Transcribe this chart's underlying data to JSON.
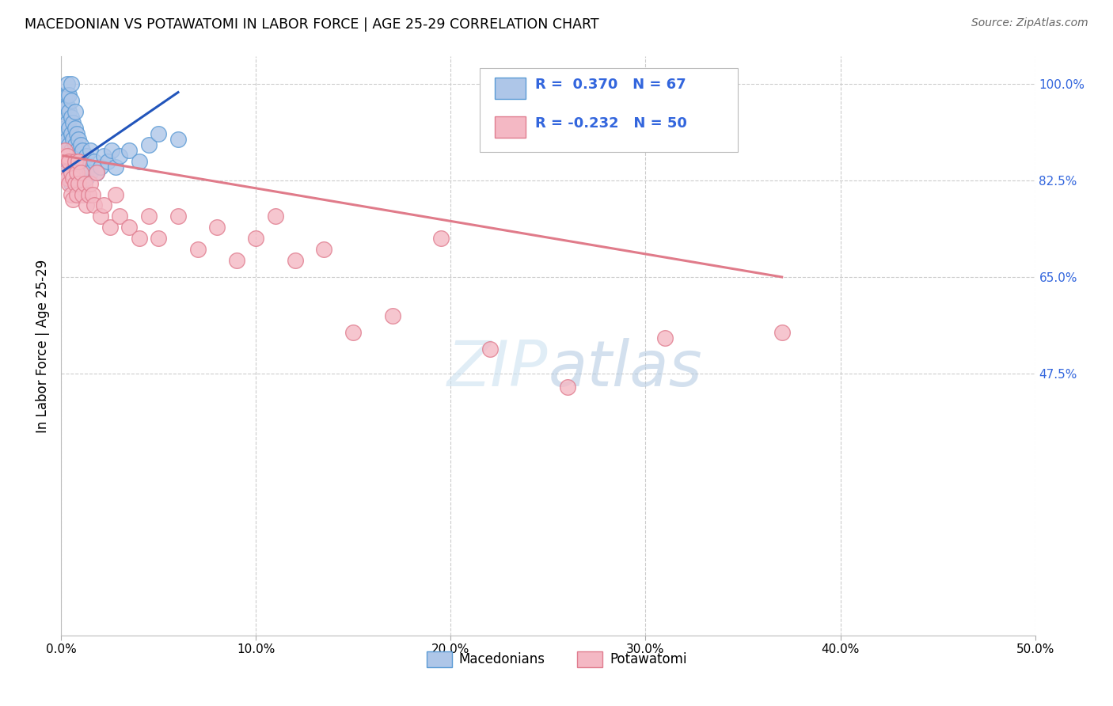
{
  "title": "MACEDONIAN VS POTAWATOMI IN LABOR FORCE | AGE 25-29 CORRELATION CHART",
  "source": "Source: ZipAtlas.com",
  "ylabel": "In Labor Force | Age 25-29",
  "watermark_zip": "ZIP",
  "watermark_atlas": "atlas",
  "xlim": [
    0.0,
    0.5
  ],
  "ylim": [
    0.0,
    1.05
  ],
  "xticks": [
    0.0,
    0.1,
    0.2,
    0.3,
    0.4,
    0.5
  ],
  "xtick_labels": [
    "0.0%",
    "10.0%",
    "20.0%",
    "30.0%",
    "40.0%",
    "50.0%"
  ],
  "ytick_labels_right": [
    "100.0%",
    "82.5%",
    "65.0%",
    "47.5%"
  ],
  "ytick_vals_right": [
    1.0,
    0.825,
    0.65,
    0.475
  ],
  "mac_R": 0.37,
  "mac_N": 67,
  "pot_R": -0.232,
  "pot_N": 50,
  "mac_color": "#aec6e8",
  "mac_edge_color": "#5b9bd5",
  "pot_color": "#f4b8c4",
  "pot_edge_color": "#e07d8f",
  "mac_line_color": "#2255bb",
  "pot_line_color": "#e07b8a",
  "right_axis_color": "#3366dd",
  "grid_color": "#cccccc",
  "background_color": "#ffffff",
  "mac_x": [
    0.001,
    0.001,
    0.001,
    0.002,
    0.002,
    0.002,
    0.002,
    0.002,
    0.003,
    0.003,
    0.003,
    0.003,
    0.003,
    0.003,
    0.003,
    0.004,
    0.004,
    0.004,
    0.004,
    0.004,
    0.004,
    0.005,
    0.005,
    0.005,
    0.005,
    0.005,
    0.005,
    0.005,
    0.006,
    0.006,
    0.006,
    0.006,
    0.007,
    0.007,
    0.007,
    0.007,
    0.007,
    0.008,
    0.008,
    0.008,
    0.009,
    0.009,
    0.009,
    0.01,
    0.01,
    0.01,
    0.011,
    0.011,
    0.012,
    0.013,
    0.013,
    0.014,
    0.015,
    0.015,
    0.017,
    0.018,
    0.02,
    0.022,
    0.024,
    0.026,
    0.028,
    0.03,
    0.035,
    0.04,
    0.045,
    0.05,
    0.06
  ],
  "mac_y": [
    0.87,
    0.9,
    0.95,
    0.86,
    0.89,
    0.92,
    0.96,
    0.98,
    0.84,
    0.87,
    0.9,
    0.93,
    0.96,
    0.98,
    1.0,
    0.83,
    0.86,
    0.89,
    0.92,
    0.95,
    0.98,
    0.82,
    0.85,
    0.88,
    0.91,
    0.94,
    0.97,
    1.0,
    0.84,
    0.87,
    0.9,
    0.93,
    0.83,
    0.86,
    0.89,
    0.92,
    0.95,
    0.85,
    0.88,
    0.91,
    0.84,
    0.87,
    0.9,
    0.83,
    0.86,
    0.89,
    0.85,
    0.88,
    0.84,
    0.83,
    0.87,
    0.85,
    0.84,
    0.88,
    0.86,
    0.84,
    0.85,
    0.87,
    0.86,
    0.88,
    0.85,
    0.87,
    0.88,
    0.86,
    0.89,
    0.91,
    0.9
  ],
  "pot_x": [
    0.001,
    0.002,
    0.002,
    0.003,
    0.003,
    0.004,
    0.004,
    0.005,
    0.005,
    0.006,
    0.006,
    0.007,
    0.007,
    0.008,
    0.008,
    0.009,
    0.009,
    0.01,
    0.011,
    0.012,
    0.013,
    0.014,
    0.015,
    0.016,
    0.017,
    0.018,
    0.02,
    0.022,
    0.025,
    0.028,
    0.03,
    0.035,
    0.04,
    0.045,
    0.05,
    0.06,
    0.07,
    0.08,
    0.09,
    0.1,
    0.11,
    0.12,
    0.135,
    0.15,
    0.17,
    0.195,
    0.22,
    0.26,
    0.31,
    0.37
  ],
  "pot_y": [
    0.87,
    0.84,
    0.88,
    0.83,
    0.87,
    0.82,
    0.86,
    0.8,
    0.84,
    0.79,
    0.83,
    0.82,
    0.86,
    0.8,
    0.84,
    0.82,
    0.86,
    0.84,
    0.8,
    0.82,
    0.78,
    0.8,
    0.82,
    0.8,
    0.78,
    0.84,
    0.76,
    0.78,
    0.74,
    0.8,
    0.76,
    0.74,
    0.72,
    0.76,
    0.72,
    0.76,
    0.7,
    0.74,
    0.68,
    0.72,
    0.76,
    0.68,
    0.7,
    0.55,
    0.58,
    0.72,
    0.52,
    0.45,
    0.54,
    0.55
  ],
  "mac_trend_x": [
    0.001,
    0.06
  ],
  "mac_trend_y": [
    0.842,
    0.985
  ],
  "pot_trend_x": [
    0.001,
    0.37
  ],
  "pot_trend_y": [
    0.87,
    0.65
  ]
}
